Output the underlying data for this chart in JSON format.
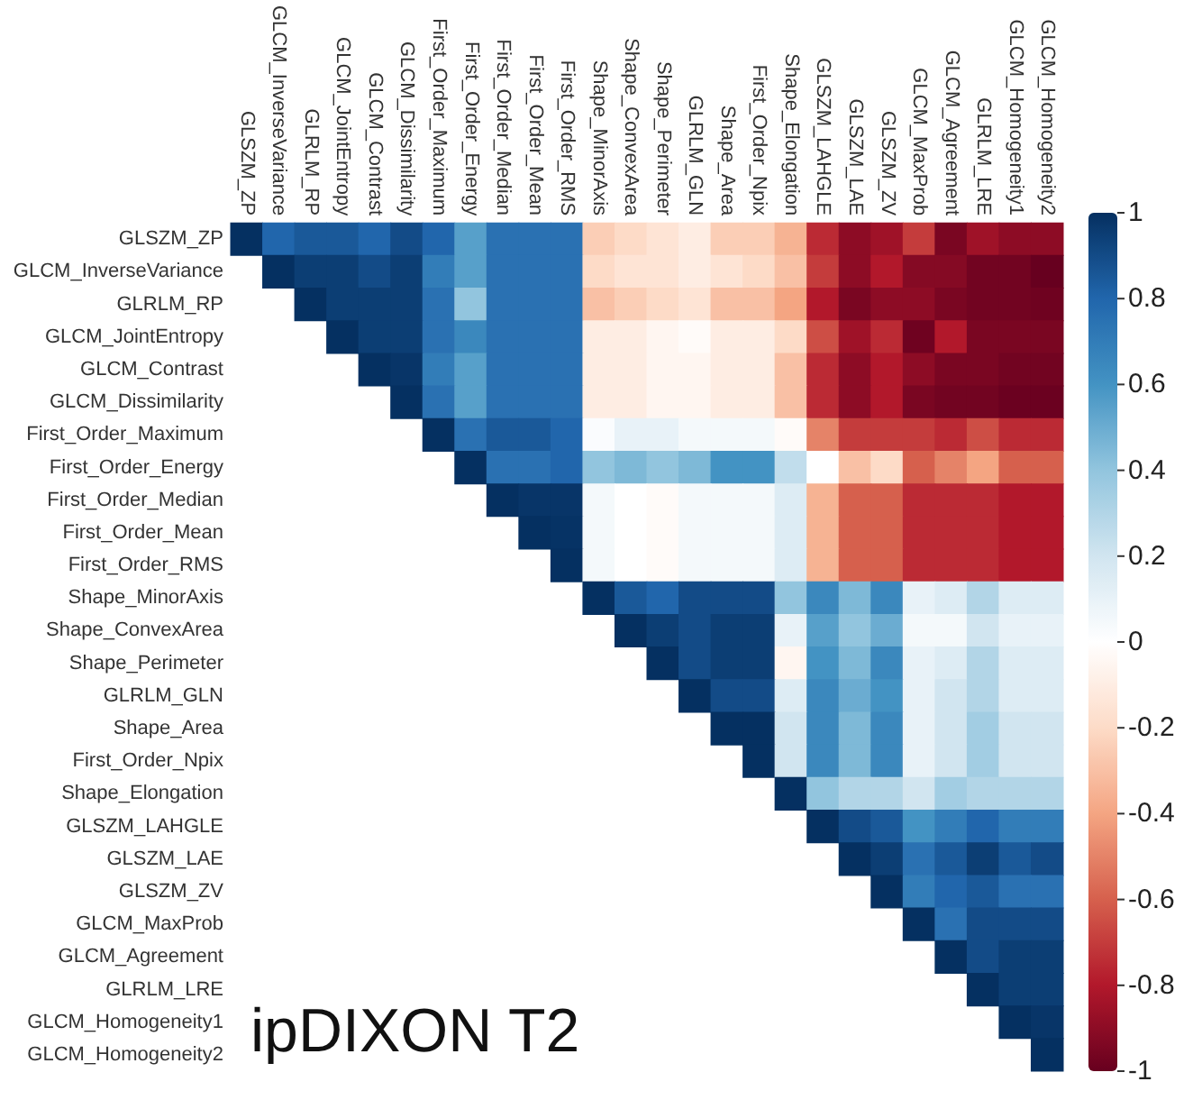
{
  "chart_data": {
    "type": "heatmap",
    "title": "ipDIXON T2",
    "categories": [
      "GLSZM_ZP",
      "GLCM_InverseVariance",
      "GLRLM_RP",
      "GLCM_JointEntropy",
      "GLCM_Contrast",
      "GLCM_Dissimilarity",
      "First_Order_Maximum",
      "First_Order_Energy",
      "First_Order_Median",
      "First_Order_Mean",
      "First_Order_RMS",
      "Shape_MinorAxis",
      "Shape_ConvexArea",
      "Shape_Perimeter",
      "GLRLM_GLN",
      "Shape_Area",
      "First_Order_Npix",
      "Shape_Elongation",
      "GLSZM_LAHGLE",
      "GLSZM_LAE",
      "GLSZM_ZV",
      "GLCM_MaxProb",
      "GLCM_Agreement",
      "GLRLM_LRE",
      "GLCM_Homogeneity1",
      "GLCM_Homogeneity2"
    ],
    "y_categories": [
      "GLSZM_ZP",
      "GLCM_InverseVariance",
      "GLRLM_RP",
      "GLCM_JointEntropy",
      "GLCM_Contrast",
      "GLCM_Dissimilarity",
      "First_Order_Maximum",
      "First_Order_Energy",
      "First_Order_Median",
      "First_Order_Mean",
      "First_Order_RMS",
      "Shape_MinorAxis",
      "Shape_ConvexArea",
      "Shape_Perimeter",
      "GLRLM_GLN",
      "Shape_Area",
      "First_Order_Npix",
      "Shape_Elongation",
      "GLSZM_LAHGLE",
      "GLSZM_LAE",
      "GLSZM_ZV",
      "GLCM_MaxProb",
      "GLCM_Agreement",
      "GLRLM_LRE",
      "GLCM_Homogeneity1",
      "GLCM_Homogeneity2"
    ],
    "cells": [
      [
        1,
        0.8,
        0.85,
        0.85,
        0.8,
        0.9,
        0.8,
        0.55,
        0.75,
        0.75,
        0.75,
        -0.25,
        -0.2,
        -0.15,
        -0.1,
        -0.25,
        -0.25,
        -0.35,
        -0.75,
        -0.9,
        -0.85,
        -0.7,
        -0.95,
        -0.85,
        -0.9,
        -0.9
      ],
      [
        null,
        1,
        0.95,
        0.95,
        0.9,
        0.95,
        0.7,
        0.55,
        0.75,
        0.75,
        0.75,
        -0.2,
        -0.15,
        -0.15,
        -0.1,
        -0.15,
        -0.2,
        -0.3,
        -0.7,
        -0.9,
        -0.8,
        -0.92,
        -0.92,
        -0.97,
        -0.97,
        -1
      ],
      [
        null,
        null,
        1,
        0.95,
        0.95,
        0.95,
        0.75,
        0.4,
        0.75,
        0.75,
        0.75,
        -0.3,
        -0.25,
        -0.2,
        -0.15,
        -0.3,
        -0.3,
        -0.4,
        -0.8,
        -0.95,
        -0.9,
        -0.9,
        -0.95,
        -0.97,
        -0.97,
        -0.98
      ],
      [
        null,
        null,
        null,
        1,
        0.95,
        0.95,
        0.75,
        0.65,
        0.75,
        0.75,
        0.75,
        -0.1,
        -0.1,
        -0.05,
        -0.02,
        -0.1,
        -0.1,
        -0.2,
        -0.65,
        -0.85,
        -0.75,
        -0.98,
        -0.8,
        -0.95,
        -0.95,
        -0.95
      ],
      [
        null,
        null,
        null,
        null,
        1,
        0.98,
        0.7,
        0.55,
        0.75,
        0.75,
        0.75,
        -0.1,
        -0.1,
        -0.05,
        -0.05,
        -0.1,
        -0.1,
        -0.3,
        -0.75,
        -0.9,
        -0.8,
        -0.9,
        -0.95,
        -0.95,
        -0.97,
        -0.97
      ],
      [
        null,
        null,
        null,
        null,
        null,
        1,
        0.75,
        0.55,
        0.75,
        0.75,
        0.75,
        -0.1,
        -0.1,
        -0.05,
        -0.05,
        -0.1,
        -0.1,
        -0.3,
        -0.75,
        -0.9,
        -0.8,
        -0.95,
        -0.97,
        -0.97,
        -0.99,
        -0.99
      ],
      [
        null,
        null,
        null,
        null,
        null,
        null,
        1,
        0.75,
        0.85,
        0.85,
        0.8,
        0.02,
        0.1,
        0.1,
        0.05,
        0.05,
        0.05,
        -0.02,
        -0.5,
        -0.7,
        -0.7,
        -0.7,
        -0.75,
        -0.65,
        -0.75,
        -0.75
      ],
      [
        null,
        null,
        null,
        null,
        null,
        null,
        null,
        1,
        0.75,
        0.75,
        0.8,
        0.4,
        0.45,
        0.4,
        0.45,
        0.6,
        0.6,
        0.25,
        0,
        -0.3,
        -0.2,
        -0.6,
        -0.5,
        -0.4,
        -0.6,
        -0.6
      ],
      [
        null,
        null,
        null,
        null,
        null,
        null,
        null,
        null,
        1,
        0.98,
        0.98,
        0.05,
        0,
        -0.02,
        0.05,
        0.05,
        0.05,
        0.15,
        -0.35,
        -0.6,
        -0.6,
        -0.75,
        -0.75,
        -0.75,
        -0.8,
        -0.8
      ],
      [
        null,
        null,
        null,
        null,
        null,
        null,
        null,
        null,
        null,
        1,
        0.99,
        0.05,
        0,
        -0.02,
        0.05,
        0.05,
        0.05,
        0.15,
        -0.35,
        -0.6,
        -0.6,
        -0.75,
        -0.75,
        -0.75,
        -0.8,
        -0.8
      ],
      [
        null,
        null,
        null,
        null,
        null,
        null,
        null,
        null,
        null,
        null,
        1,
        0.05,
        0,
        -0.02,
        0.05,
        0.05,
        0.05,
        0.15,
        -0.35,
        -0.6,
        -0.6,
        -0.75,
        -0.75,
        -0.75,
        -0.8,
        -0.8
      ],
      [
        null,
        null,
        null,
        null,
        null,
        null,
        null,
        null,
        null,
        null,
        null,
        1,
        0.85,
        0.8,
        0.9,
        0.9,
        0.9,
        0.4,
        0.65,
        0.45,
        0.65,
        0.1,
        0.15,
        0.3,
        0.15,
        0.15
      ],
      [
        null,
        null,
        null,
        null,
        null,
        null,
        null,
        null,
        null,
        null,
        null,
        null,
        1,
        0.95,
        0.9,
        0.95,
        0.95,
        0.1,
        0.55,
        0.4,
        0.5,
        0.05,
        0.05,
        0.2,
        0.1,
        0.1
      ],
      [
        null,
        null,
        null,
        null,
        null,
        null,
        null,
        null,
        null,
        null,
        null,
        null,
        null,
        1,
        0.9,
        0.95,
        0.95,
        -0.05,
        0.6,
        0.45,
        0.65,
        0.1,
        0.15,
        0.3,
        0.15,
        0.15
      ],
      [
        null,
        null,
        null,
        null,
        null,
        null,
        null,
        null,
        null,
        null,
        null,
        null,
        null,
        null,
        1,
        0.9,
        0.9,
        0.15,
        0.65,
        0.5,
        0.6,
        0.1,
        0.2,
        0.3,
        0.15,
        0.15
      ],
      [
        null,
        null,
        null,
        null,
        null,
        null,
        null,
        null,
        null,
        null,
        null,
        null,
        null,
        null,
        null,
        1,
        1,
        0.2,
        0.65,
        0.45,
        0.65,
        0.1,
        0.2,
        0.35,
        0.2,
        0.2
      ],
      [
        null,
        null,
        null,
        null,
        null,
        null,
        null,
        null,
        null,
        null,
        null,
        null,
        null,
        null,
        null,
        null,
        1,
        0.2,
        0.65,
        0.45,
        0.65,
        0.1,
        0.2,
        0.35,
        0.2,
        0.2
      ],
      [
        null,
        null,
        null,
        null,
        null,
        null,
        null,
        null,
        null,
        null,
        null,
        null,
        null,
        null,
        null,
        null,
        null,
        1,
        0.4,
        0.3,
        0.3,
        0.2,
        0.35,
        0.3,
        0.3,
        0.3
      ],
      [
        null,
        null,
        null,
        null,
        null,
        null,
        null,
        null,
        null,
        null,
        null,
        null,
        null,
        null,
        null,
        null,
        null,
        null,
        1,
        0.9,
        0.85,
        0.6,
        0.7,
        0.8,
        0.7,
        0.7
      ],
      [
        null,
        null,
        null,
        null,
        null,
        null,
        null,
        null,
        null,
        null,
        null,
        null,
        null,
        null,
        null,
        null,
        null,
        null,
        null,
        1,
        0.95,
        0.75,
        0.85,
        0.95,
        0.85,
        0.9
      ],
      [
        null,
        null,
        null,
        null,
        null,
        null,
        null,
        null,
        null,
        null,
        null,
        null,
        null,
        null,
        null,
        null,
        null,
        null,
        null,
        null,
        1,
        0.7,
        0.8,
        0.85,
        0.75,
        0.75
      ],
      [
        null,
        null,
        null,
        null,
        null,
        null,
        null,
        null,
        null,
        null,
        null,
        null,
        null,
        null,
        null,
        null,
        null,
        null,
        null,
        null,
        null,
        1,
        0.75,
        0.9,
        0.9,
        0.9
      ],
      [
        null,
        null,
        null,
        null,
        null,
        null,
        null,
        null,
        null,
        null,
        null,
        null,
        null,
        null,
        null,
        null,
        null,
        null,
        null,
        null,
        null,
        null,
        1,
        0.9,
        0.95,
        0.95
      ],
      [
        null,
        null,
        null,
        null,
        null,
        null,
        null,
        null,
        null,
        null,
        null,
        null,
        null,
        null,
        null,
        null,
        null,
        null,
        null,
        null,
        null,
        null,
        null,
        1,
        0.95,
        0.95
      ],
      [
        null,
        null,
        null,
        null,
        null,
        null,
        null,
        null,
        null,
        null,
        null,
        null,
        null,
        null,
        null,
        null,
        null,
        null,
        null,
        null,
        null,
        null,
        null,
        null,
        1,
        0.98
      ],
      [
        null,
        null,
        null,
        null,
        null,
        null,
        null,
        null,
        null,
        null,
        null,
        null,
        null,
        null,
        null,
        null,
        null,
        null,
        null,
        null,
        null,
        null,
        null,
        null,
        null,
        1
      ]
    ],
    "clim": [
      -1,
      1
    ],
    "cticks": [
      -1,
      -0.8,
      -0.6,
      -0.4,
      -0.2,
      0,
      0.2,
      0.4,
      0.6,
      0.8,
      1
    ]
  }
}
